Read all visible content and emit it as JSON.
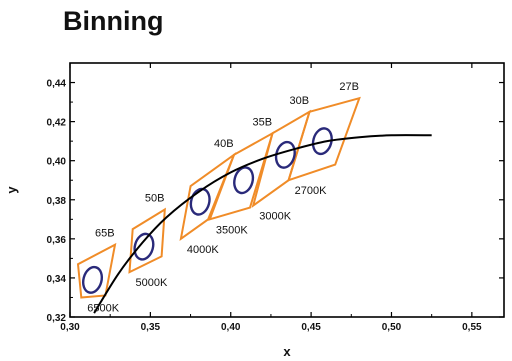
{
  "page": {
    "title": "Binning"
  },
  "colors": {
    "bin_outline": "#f08c28",
    "ellipse": "#2a2a7a",
    "curve": "#000000"
  },
  "chart_data": {
    "type": "scatter",
    "title": "Binning",
    "xlabel": "x",
    "ylabel": "y",
    "xlim": [
      0.3,
      0.57
    ],
    "ylim": [
      0.32,
      0.45
    ],
    "x_ticks": [
      "0,30",
      "0,35",
      "0,40",
      "0,45",
      "0,50",
      "0,55"
    ],
    "y_ticks": [
      "0,32",
      "0,34",
      "0,36",
      "0,38",
      "0,40",
      "0,42",
      "0,44"
    ],
    "grid": false,
    "planckian_locus": [
      [
        0.315,
        0.322
      ],
      [
        0.33,
        0.342
      ],
      [
        0.345,
        0.358
      ],
      [
        0.36,
        0.371
      ],
      [
        0.38,
        0.384
      ],
      [
        0.4,
        0.394
      ],
      [
        0.42,
        0.401
      ],
      [
        0.44,
        0.406
      ],
      [
        0.46,
        0.41
      ],
      [
        0.48,
        0.412
      ],
      [
        0.5,
        0.413
      ],
      [
        0.525,
        0.413
      ]
    ],
    "bins": [
      {
        "label": "65B",
        "cct": "6500K",
        "ellipse_center": [
          0.314,
          0.339
        ],
        "quad": [
          [
            0.307,
            0.33
          ],
          [
            0.322,
            0.331
          ],
          [
            0.328,
            0.357
          ],
          [
            0.305,
            0.347
          ]
        ]
      },
      {
        "label": "50B",
        "cct": "5000K",
        "ellipse_center": [
          0.346,
          0.356
        ],
        "quad": [
          [
            0.337,
            0.343
          ],
          [
            0.357,
            0.351
          ],
          [
            0.359,
            0.375
          ],
          [
            0.339,
            0.365
          ]
        ]
      },
      {
        "label": "40B",
        "cct": "4000K",
        "ellipse_center": [
          0.381,
          0.379
        ],
        "quad": [
          [
            0.369,
            0.36
          ],
          [
            0.386,
            0.37
          ],
          [
            0.402,
            0.403
          ],
          [
            0.375,
            0.387
          ]
        ]
      },
      {
        "label": "35B",
        "cct": "3500K",
        "ellipse_center": [
          0.408,
          0.39
        ],
        "quad": [
          [
            0.387,
            0.37
          ],
          [
            0.412,
            0.376
          ],
          [
            0.426,
            0.414
          ],
          [
            0.402,
            0.403
          ]
        ]
      },
      {
        "label": "30B",
        "cct": "3000K",
        "ellipse_center": [
          0.434,
          0.403
        ],
        "quad": [
          [
            0.414,
            0.377
          ],
          [
            0.436,
            0.39
          ],
          [
            0.449,
            0.425
          ],
          [
            0.426,
            0.414
          ]
        ]
      },
      {
        "label": "27B",
        "cct": "2700K",
        "ellipse_center": [
          0.457,
          0.41
        ],
        "quad": [
          [
            0.436,
            0.39
          ],
          [
            0.465,
            0.398
          ],
          [
            0.48,
            0.432
          ],
          [
            0.449,
            0.425
          ]
        ]
      }
    ]
  }
}
